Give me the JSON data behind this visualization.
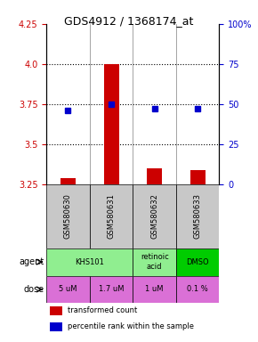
{
  "title": "GDS4912 / 1368174_at",
  "samples": [
    "GSM580630",
    "GSM580631",
    "GSM580632",
    "GSM580633"
  ],
  "bar_values": [
    3.29,
    4.0,
    3.35,
    3.34
  ],
  "bar_bottom": [
    3.25,
    3.25,
    3.25,
    3.25
  ],
  "percentile_values": [
    3.71,
    3.75,
    3.72,
    3.72
  ],
  "ylim": [
    3.25,
    4.25
  ],
  "yticks_left": [
    3.25,
    3.5,
    3.75,
    4.0,
    4.25
  ],
  "yticks_right": [
    0,
    25,
    50,
    75,
    100
  ],
  "yticks_right_labels": [
    "0",
    "25",
    "50",
    "75",
    "100%"
  ],
  "agent_row": [
    "KHS101",
    "KHS101",
    "retinoic\nacid",
    "DMSO"
  ],
  "agent_colors": [
    "#90EE90",
    "#90EE90",
    "#90EE90",
    "#00CC00"
  ],
  "dose_row": [
    "5 uM",
    "1.7 uM",
    "1 uM",
    "0.1 %"
  ],
  "dose_color": "#DA70D6",
  "sample_bg_color": "#C8C8C8",
  "bar_color": "#CC0000",
  "dot_color": "#0000CC",
  "grid_color": "#000000",
  "label_color_left": "#CC0000",
  "label_color_right": "#0000CC"
}
